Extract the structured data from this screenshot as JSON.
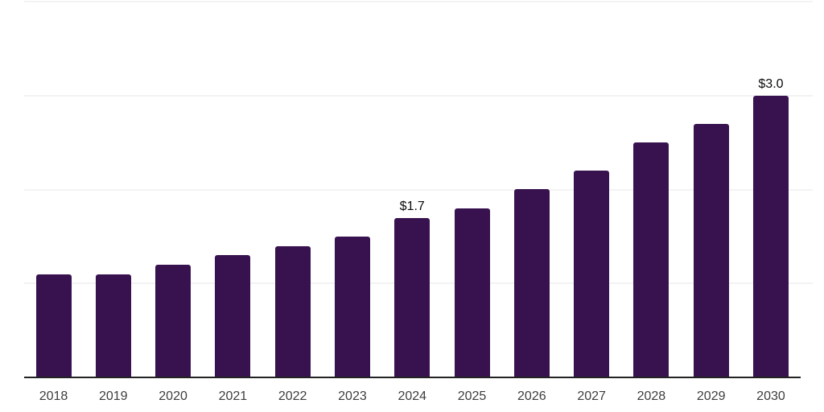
{
  "chart": {
    "background_color": "#ffffff",
    "bar_color": "#38124F",
    "axis_color": "#222222",
    "gridline_color": "#f3f3f3",
    "tick_label_color": "#3d3d3d",
    "data_label_color": "#0a0a0a"
  },
  "chart_data": {
    "type": "bar",
    "title": "",
    "xlabel": "",
    "ylabel": "",
    "categories": [
      "2018",
      "2019",
      "2020",
      "2021",
      "2022",
      "2023",
      "2024",
      "2025",
      "2026",
      "2027",
      "2028",
      "2029",
      "2030"
    ],
    "values": [
      1.1,
      1.1,
      1.2,
      1.3,
      1.4,
      1.5,
      1.7,
      1.8,
      2.0,
      2.2,
      2.5,
      2.7,
      3.0
    ],
    "data_labels": {
      "2024": "$1.7",
      "2030": "$3.0"
    },
    "ylim": [
      0,
      4
    ],
    "gridlines": [
      1,
      2,
      3,
      4
    ],
    "grid": true,
    "legend": false,
    "y_axis_labels_visible": false
  }
}
